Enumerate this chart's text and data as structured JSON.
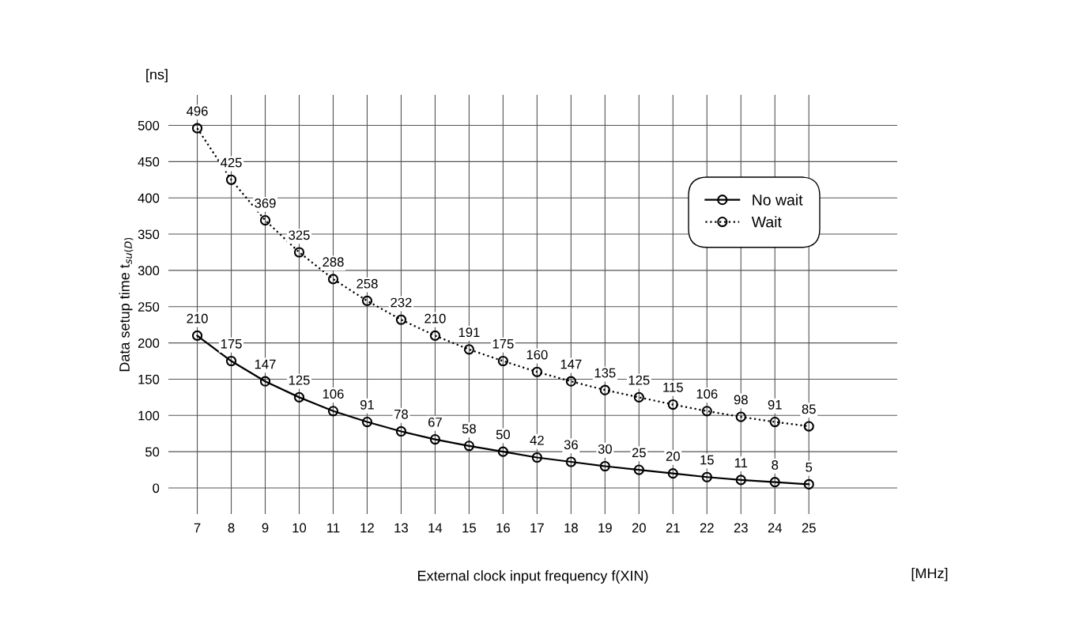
{
  "chart_data": {
    "type": "line",
    "xlabel": "External clock input frequency f(XIN)",
    "ylabel": "Data setup time t$_{su(D)}$",
    "x": [
      7,
      8,
      9,
      10,
      11,
      12,
      13,
      14,
      15,
      16,
      17,
      18,
      19,
      20,
      21,
      22,
      23,
      24,
      25
    ],
    "series": [
      {
        "name": "No wait",
        "color": "#000000",
        "line_style": "solid",
        "values": [
          210,
          175,
          147,
          125,
          106,
          91,
          78,
          67,
          58,
          50,
          42,
          36,
          30,
          25,
          20,
          15,
          11,
          8,
          5
        ]
      },
      {
        "name": "Wait",
        "color": "#000000",
        "line_style": "dotted",
        "values": [
          496,
          425,
          369,
          325,
          288,
          258,
          232,
          210,
          191,
          175,
          160,
          147,
          135,
          125,
          115,
          106,
          98,
          91,
          85
        ]
      }
    ],
    "xlim": [
      6.15,
      27.6
    ],
    "xticks": [
      7,
      8,
      9,
      10,
      11,
      12,
      13,
      14,
      15,
      16,
      17,
      18,
      19,
      20,
      21,
      22,
      23,
      24,
      25
    ],
    "ylim": [
      -36,
      542
    ],
    "yticks": [
      0,
      50,
      100,
      150,
      200,
      250,
      300,
      350,
      400,
      450,
      500
    ],
    "grid": true,
    "legend": "right",
    "marker": "circle",
    "data_labels": true,
    "annotations": [
      "[ns]",
      "[MHz]"
    ]
  }
}
